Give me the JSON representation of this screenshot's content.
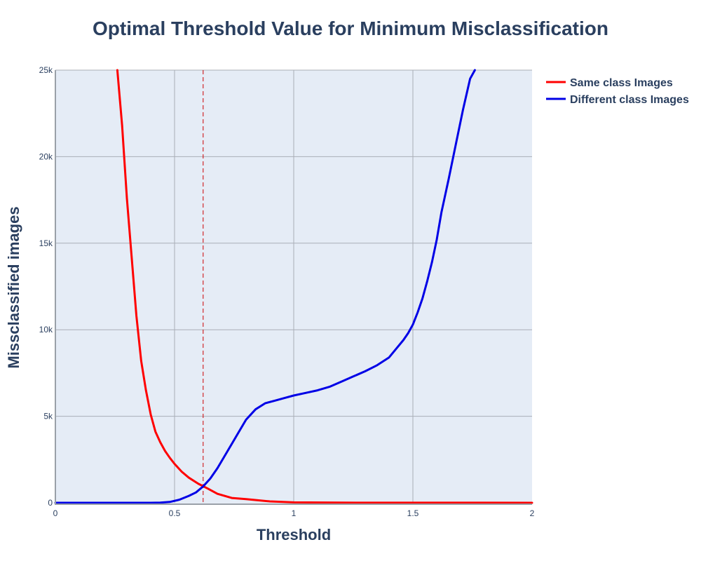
{
  "chart_data": {
    "type": "line",
    "title": "Optimal Threshold Value for Minimum Misclassification",
    "xlabel": "Threshold",
    "ylabel": "Missclassified images",
    "xlim": [
      0,
      2
    ],
    "ylim": [
      0,
      25000
    ],
    "x_ticks": [
      0,
      0.5,
      1,
      1.5,
      2
    ],
    "x_tick_labels": [
      "0",
      "0.5",
      "1",
      "1.5",
      "2"
    ],
    "y_ticks": [
      0,
      5000,
      10000,
      15000,
      20000,
      25000
    ],
    "y_tick_labels": [
      "0",
      "5k",
      "10k",
      "15k",
      "20k",
      "25k"
    ],
    "grid": true,
    "legend_position": "top-right-outside",
    "threshold_line": {
      "x": 0.62,
      "color": "#cc0000",
      "style": "dashed"
    },
    "series": [
      {
        "name": "Same class Images",
        "color": "#ff0000",
        "x": [
          0.26,
          0.28,
          0.3,
          0.32,
          0.34,
          0.36,
          0.38,
          0.4,
          0.42,
          0.44,
          0.46,
          0.48,
          0.5,
          0.53,
          0.56,
          0.6,
          0.64,
          0.68,
          0.74,
          0.8,
          0.9,
          1.0,
          1.2,
          1.5,
          1.8,
          2.0
        ],
        "values": [
          25000,
          21800,
          17600,
          14200,
          10800,
          8200,
          6500,
          5100,
          4100,
          3500,
          3000,
          2600,
          2250,
          1800,
          1450,
          1100,
          820,
          520,
          280,
          210,
          80,
          25,
          10,
          5,
          3,
          2
        ]
      },
      {
        "name": "Different class Images",
        "color": "#0000e6",
        "x": [
          0.0,
          0.1,
          0.2,
          0.3,
          0.4,
          0.44,
          0.48,
          0.52,
          0.56,
          0.59,
          0.62,
          0.65,
          0.68,
          0.71,
          0.74,
          0.77,
          0.8,
          0.84,
          0.88,
          0.92,
          0.96,
          1.0,
          1.05,
          1.1,
          1.15,
          1.2,
          1.25,
          1.3,
          1.35,
          1.4,
          1.43,
          1.46,
          1.48,
          1.5,
          1.52,
          1.54,
          1.56,
          1.58,
          1.6,
          1.62,
          1.65,
          1.68,
          1.71,
          1.74,
          1.76
        ],
        "values": [
          0,
          0,
          0,
          0,
          0,
          10,
          50,
          180,
          400,
          600,
          950,
          1400,
          2000,
          2700,
          3400,
          4100,
          4800,
          5400,
          5750,
          5900,
          6050,
          6200,
          6350,
          6500,
          6700,
          7000,
          7300,
          7600,
          7950,
          8400,
          8900,
          9400,
          9800,
          10300,
          11000,
          11800,
          12800,
          13900,
          15200,
          16800,
          18700,
          20700,
          22700,
          24500,
          25000
        ]
      }
    ]
  }
}
